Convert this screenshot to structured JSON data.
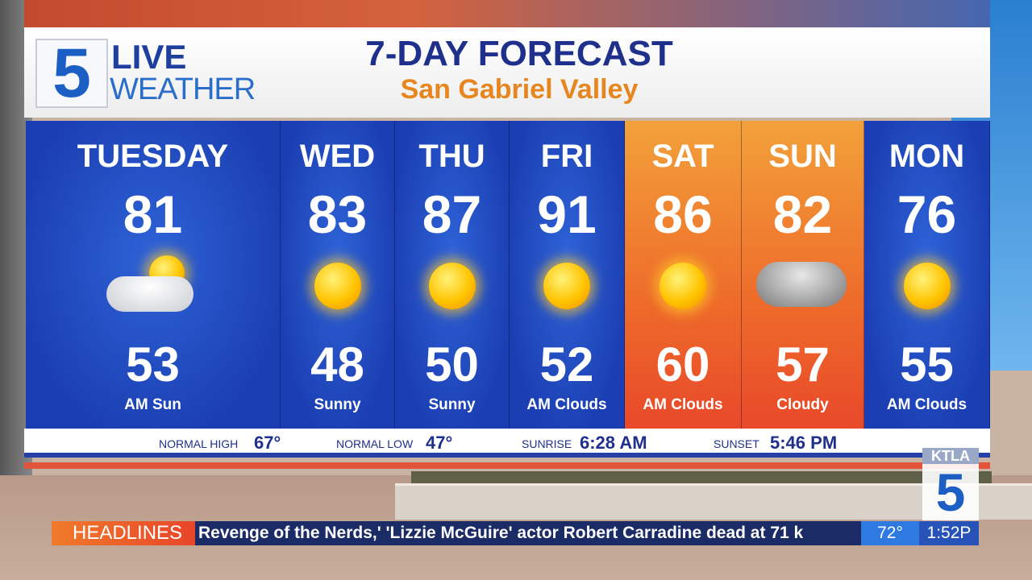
{
  "header": {
    "logo_number": "5",
    "logo_line1": "LIVE",
    "logo_line2": "WEATHER",
    "title": "7-DAY FORECAST",
    "subtitle": "San Gabriel Valley"
  },
  "days": [
    {
      "name": "TUESDAY",
      "high": "81",
      "low": "53",
      "condition": "AM Sun",
      "icon": "partly-cloudy-icon",
      "theme": "blue"
    },
    {
      "name": "WED",
      "high": "83",
      "low": "48",
      "condition": "Sunny",
      "icon": "sun-icon",
      "theme": "blue"
    },
    {
      "name": "THU",
      "high": "87",
      "low": "50",
      "condition": "Sunny",
      "icon": "sun-icon",
      "theme": "blue"
    },
    {
      "name": "FRI",
      "high": "91",
      "low": "52",
      "condition": "AM Clouds",
      "icon": "sun-icon",
      "theme": "blue"
    },
    {
      "name": "SAT",
      "high": "86",
      "low": "60",
      "condition": "AM Clouds",
      "icon": "sun-icon",
      "theme": "orange"
    },
    {
      "name": "SUN",
      "high": "82",
      "low": "57",
      "condition": "Cloudy",
      "icon": "cloud-icon",
      "theme": "orange"
    },
    {
      "name": "MON",
      "high": "76",
      "low": "55",
      "condition": "AM Clouds",
      "icon": "sun-icon",
      "theme": "blue"
    }
  ],
  "stats": {
    "normal_high_label": "NORMAL HIGH",
    "normal_high": "67°",
    "normal_low_label": "NORMAL LOW",
    "normal_low": "47°",
    "sunrise_label": "SUNRISE",
    "sunrise": "6:28 AM",
    "sunset_label": "SUNSET",
    "sunset": "5:46 PM"
  },
  "ticker": {
    "label": "HEADLINES",
    "text": "Revenge of the Nerds,' 'Lizzie McGuire' actor Robert Carradine dead at 71  k",
    "temperature": "72°",
    "time": "1:52P"
  },
  "station_bug": {
    "callsign": "KTLA",
    "number": "5"
  },
  "colors": {
    "navy": "#1e2f8c",
    "blue_panel": "#1b3fb2",
    "orange_panel": "#ee6a2a",
    "accent_orange": "#e7861f"
  }
}
